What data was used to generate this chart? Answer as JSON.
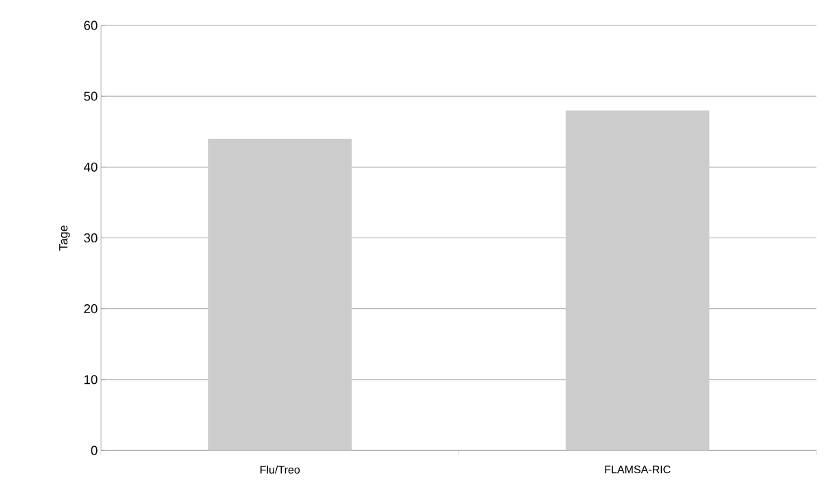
{
  "chart_data": {
    "type": "bar",
    "ylabel": "Tage",
    "categories": [
      "Flu/Treo",
      "FLAMSA-RIC"
    ],
    "values": [
      44,
      48
    ],
    "color": "#cccccc",
    "ylim": [
      0,
      60
    ],
    "yticks": [
      0,
      10,
      20,
      30,
      40,
      50,
      60
    ],
    "grid": "y"
  }
}
